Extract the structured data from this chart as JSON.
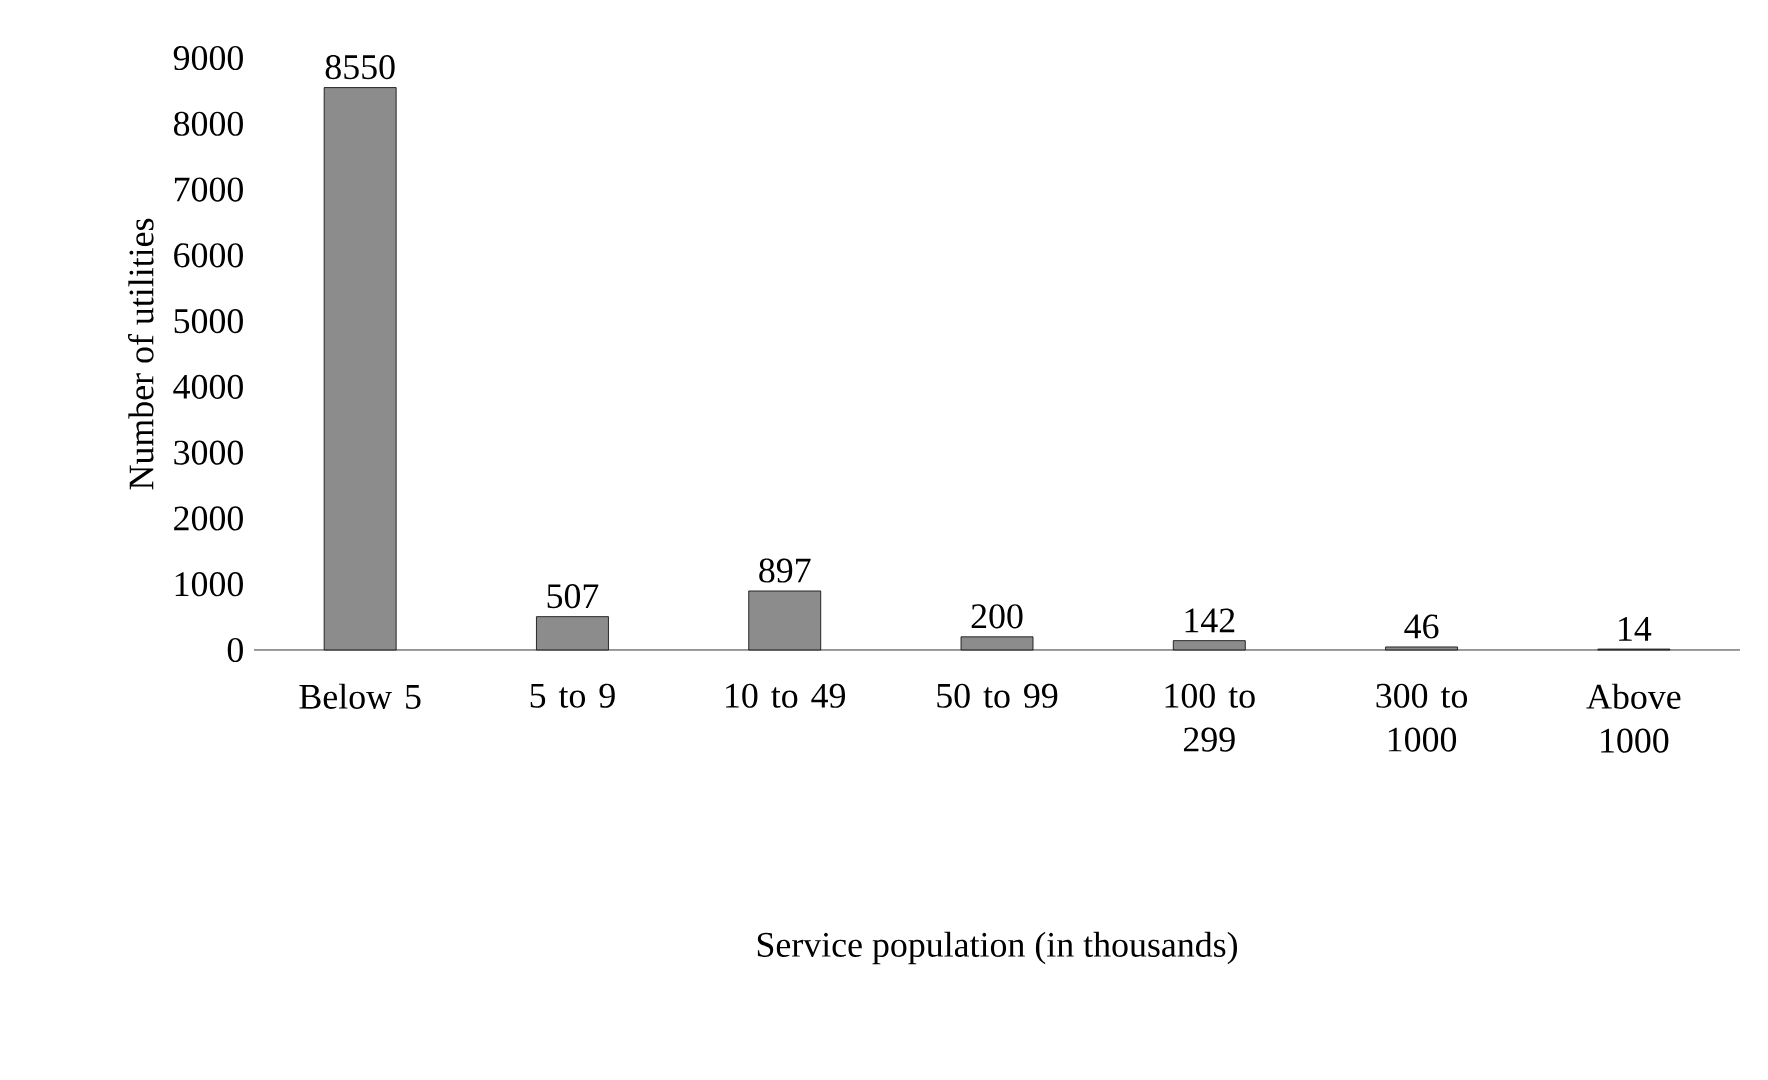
{
  "chart_data": {
    "type": "bar",
    "xlabel": "Service population (in thousands)",
    "ylabel": "Number of utilities",
    "categories": [
      "Below 5",
      "5 to 9",
      "10 to 49",
      "50 to 99",
      "100 to 299",
      "300 to 1000",
      "Above 1000"
    ],
    "values": [
      8550,
      507,
      897,
      200,
      142,
      46,
      14
    ],
    "color": "#8c8c8c",
    "ylim": [
      0,
      9000
    ],
    "yticks": [
      0,
      1000,
      2000,
      3000,
      4000,
      5000,
      6000,
      7000,
      8000,
      9000
    ],
    "data_labels": true,
    "grid": false
  }
}
